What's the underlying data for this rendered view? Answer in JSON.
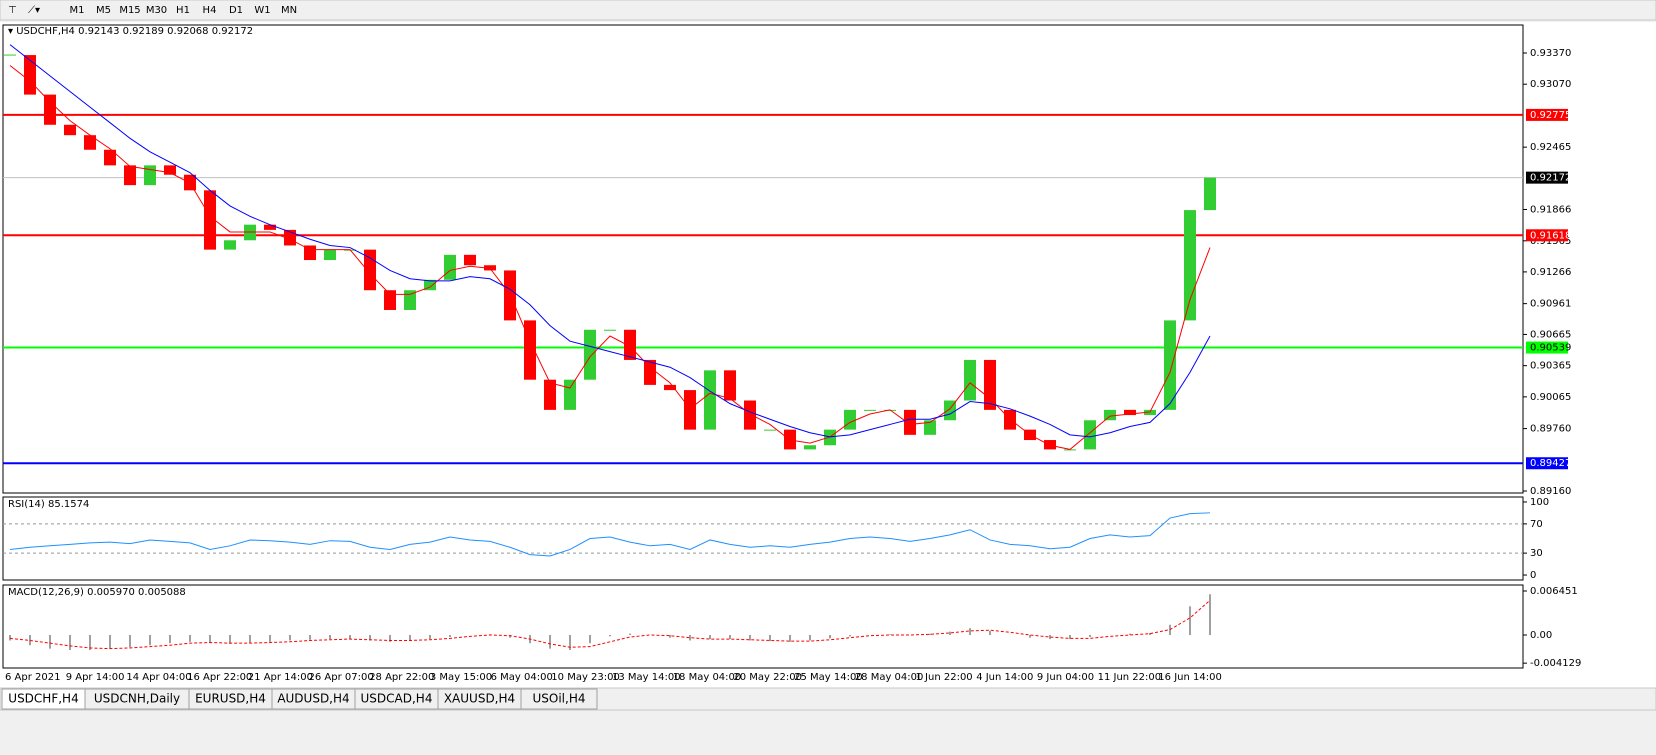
{
  "toolbar": {
    "timeframes": [
      "M1",
      "M5",
      "M15",
      "M30",
      "H1",
      "H4",
      "D1",
      "W1",
      "MN"
    ]
  },
  "chart_data": [
    {
      "type": "candlestick",
      "title": "USDCHF,H4",
      "ohlc": [
        0.92143,
        0.92189,
        0.92068,
        0.92172
      ],
      "categories": [
        "6 Apr 2021",
        "9 Apr 14:00",
        "14 Apr 04:00",
        "16 Apr 22:00",
        "21 Apr 14:00",
        "26 Apr 07:00",
        "28 Apr 22:00",
        "3 May 15:00",
        "6 May 04:00",
        "10 May 23:00",
        "13 May 14:00",
        "18 May 04:00",
        "20 May 22:00",
        "25 May 14:00",
        "28 May 04:00",
        "1 Jun 22:00",
        "4 Jun 14:00",
        "9 Jun 04:00",
        "11 Jun 22:00",
        "16 Jun 14:00"
      ],
      "close": [
        0.9335,
        0.9297,
        0.9268,
        0.9258,
        0.9244,
        0.9229,
        0.921,
        0.9229,
        0.922,
        0.9205,
        0.9148,
        0.9157,
        0.9172,
        0.9167,
        0.9152,
        0.9138,
        0.9148,
        0.9148,
        0.9109,
        0.909,
        0.9109,
        0.9119,
        0.9143,
        0.9133,
        0.9128,
        0.908,
        0.9023,
        0.8994,
        0.9023,
        0.9071,
        0.9071,
        0.9042,
        0.9018,
        0.9013,
        0.8975,
        0.9032,
        0.9003,
        0.8975,
        0.8975,
        0.8956,
        0.896,
        0.8975,
        0.8994,
        0.8994,
        0.8994,
        0.897,
        0.8984,
        0.9003,
        0.9042,
        0.8994,
        0.8975,
        0.8965,
        0.8956,
        0.8956,
        0.8984,
        0.8994,
        0.8989,
        0.8994,
        0.908,
        0.9186,
        0.92172
      ],
      "up_color": "#32cd32",
      "down_color": "#ff0000",
      "lines": [
        {
          "color": "#ff0000",
          "values": [
            0.9325,
            0.931,
            0.929,
            0.9272,
            0.9258,
            0.9245,
            0.9228,
            0.9225,
            0.9222,
            0.9212,
            0.918,
            0.9165,
            0.9165,
            0.9165,
            0.9158,
            0.9148,
            0.9148,
            0.9148,
            0.9125,
            0.9105,
            0.9105,
            0.9112,
            0.9128,
            0.9132,
            0.913,
            0.9105,
            0.906,
            0.902,
            0.9015,
            0.9045,
            0.9065,
            0.9055,
            0.9035,
            0.902,
            0.8995,
            0.901,
            0.9005,
            0.899,
            0.898,
            0.8965,
            0.8962,
            0.8968,
            0.8982,
            0.899,
            0.8994,
            0.898,
            0.8982,
            0.8995,
            0.902,
            0.9005,
            0.8985,
            0.897,
            0.896,
            0.8956,
            0.8972,
            0.8988,
            0.899,
            0.8992,
            0.903,
            0.91,
            0.915
          ]
        },
        {
          "color": "#0000ff",
          "values": [
            0.9345,
            0.933,
            0.9315,
            0.93,
            0.9285,
            0.927,
            0.9255,
            0.9242,
            0.9232,
            0.9222,
            0.9205,
            0.919,
            0.918,
            0.9172,
            0.9165,
            0.9158,
            0.9152,
            0.915,
            0.914,
            0.9128,
            0.912,
            0.9118,
            0.9118,
            0.9122,
            0.912,
            0.911,
            0.9095,
            0.9075,
            0.906,
            0.9055,
            0.905,
            0.9045,
            0.904,
            0.9035,
            0.9025,
            0.9012,
            0.9,
            0.8992,
            0.8985,
            0.8978,
            0.8972,
            0.8968,
            0.897,
            0.8975,
            0.898,
            0.8985,
            0.8985,
            0.899,
            0.9002,
            0.9,
            0.8995,
            0.8988,
            0.898,
            0.897,
            0.8968,
            0.8972,
            0.8978,
            0.8982,
            0.9,
            0.903,
            0.9065
          ]
        }
      ],
      "levels": [
        {
          "value": 0.92775,
          "color": "#ff0000",
          "label_bg": "#ff0000"
        },
        {
          "value": 0.92172,
          "color": "#c0c0c0",
          "label_bg": "#000000"
        },
        {
          "value": 0.91618,
          "color": "#ff0000",
          "label_bg": "#ff0000"
        },
        {
          "value": 0.90539,
          "color": "#00ff00",
          "label_bg": "#00ff00"
        },
        {
          "value": 0.89427,
          "color": "#0000ff",
          "label_bg": "#0000ff"
        }
      ],
      "ylim": [
        0.89141,
        0.93639
      ],
      "yticks": [
        {
          "value": 0.9337,
          "label": "0.93370"
        },
        {
          "value": 0.9307,
          "label": "0.93070"
        },
        0.92465,
        0.91866,
        0.91565,
        0.91266,
        0.90961,
        0.90665,
        0.90365,
        0.90065,
        {
          "value": 0.8976,
          "label": "0.89760"
        },
        {
          "value": 0.8916,
          "label": "0.89160"
        }
      ]
    },
    {
      "type": "line",
      "title": "RSI(14)",
      "value": 85.1574,
      "color": "#1e90ff",
      "values": [
        35,
        38,
        40,
        42,
        44,
        45,
        43,
        48,
        46,
        44,
        35,
        40,
        48,
        47,
        45,
        42,
        47,
        46,
        38,
        35,
        42,
        45,
        52,
        48,
        46,
        38,
        28,
        26,
        35,
        50,
        52,
        45,
        40,
        42,
        35,
        48,
        42,
        38,
        40,
        38,
        42,
        45,
        50,
        52,
        50,
        46,
        50,
        55,
        62,
        48,
        42,
        40,
        36,
        38,
        50,
        55,
        52,
        54,
        78,
        84,
        85.1574
      ],
      "levels": [
        70,
        30
      ],
      "ylim": [
        -6.8,
        106.8
      ],
      "yticks": [
        100,
        70,
        30,
        0
      ]
    },
    {
      "type": "macd",
      "title": "MACD(12,26,9)",
      "header_values": [
        {
          "value": 0.00597,
          "label": "0.005970"
        },
        0.005088
      ],
      "histogram": [
        -0.0008,
        -0.0015,
        -0.002,
        -0.0022,
        -0.0022,
        -0.002,
        -0.0018,
        -0.0015,
        -0.0012,
        -0.001,
        -0.0012,
        -0.0013,
        -0.0012,
        -0.001,
        -0.0008,
        -0.0007,
        -0.0006,
        -0.0006,
        -0.0008,
        -0.001,
        -0.0008,
        -0.0006,
        -0.0003,
        0,
        0.0001,
        -0.0004,
        -0.0012,
        -0.002,
        -0.0022,
        -0.0012,
        -0.0002,
        0.0002,
        0,
        -0.0004,
        -0.0008,
        -0.0006,
        -0.0006,
        -0.0008,
        -0.0009,
        -0.001,
        -0.0008,
        -0.0005,
        -0.0002,
        0,
        0.0001,
        0,
        0.0002,
        0.0005,
        0.001,
        0.0006,
        0,
        -0.0004,
        -0.0006,
        -0.0006,
        -0.0003,
        0,
        0.0002,
        0.0003,
        0.0015,
        0.0042,
        0.00597
      ],
      "signal": [
        -0.0005,
        -0.0008,
        -0.0012,
        -0.0016,
        -0.0019,
        -0.002,
        -0.0019,
        -0.0017,
        -0.0015,
        -0.0012,
        -0.0011,
        -0.0012,
        -0.0012,
        -0.0011,
        -0.001,
        -0.0008,
        -0.0007,
        -0.0006,
        -0.0007,
        -0.0008,
        -0.0008,
        -0.0007,
        -0.0005,
        -0.0002,
        0,
        -0.0001,
        -0.0006,
        -0.0013,
        -0.0018,
        -0.0017,
        -0.001,
        -0.0003,
        0,
        -0.0001,
        -0.0004,
        -0.0006,
        -0.0006,
        -0.0007,
        -0.0008,
        -0.0009,
        -0.0009,
        -0.0007,
        -0.0004,
        -0.0001,
        0,
        0,
        0.0001,
        0.0003,
        0.0006,
        0.0007,
        0.0004,
        0,
        -0.0003,
        -0.0005,
        -0.0005,
        -0.0002,
        0,
        0.0002,
        0.0008,
        0.0025,
        0.005088
      ],
      "hist_color": "#a0a0a0",
      "signal_color": "#ff0000",
      "ylim": [
        -0.00484,
        0.00733
      ],
      "yticks": [
        0.006451,
        {
          "value": 0,
          "label": "0.00"
        },
        -0.004129
      ]
    }
  ],
  "tabs": [
    "USDCHF,H4",
    "USDCNH,Daily",
    "EURUSD,H4",
    "AUDUSD,H4",
    "USDCAD,H4",
    "XAUUSD,H4",
    "USOil,H4"
  ]
}
